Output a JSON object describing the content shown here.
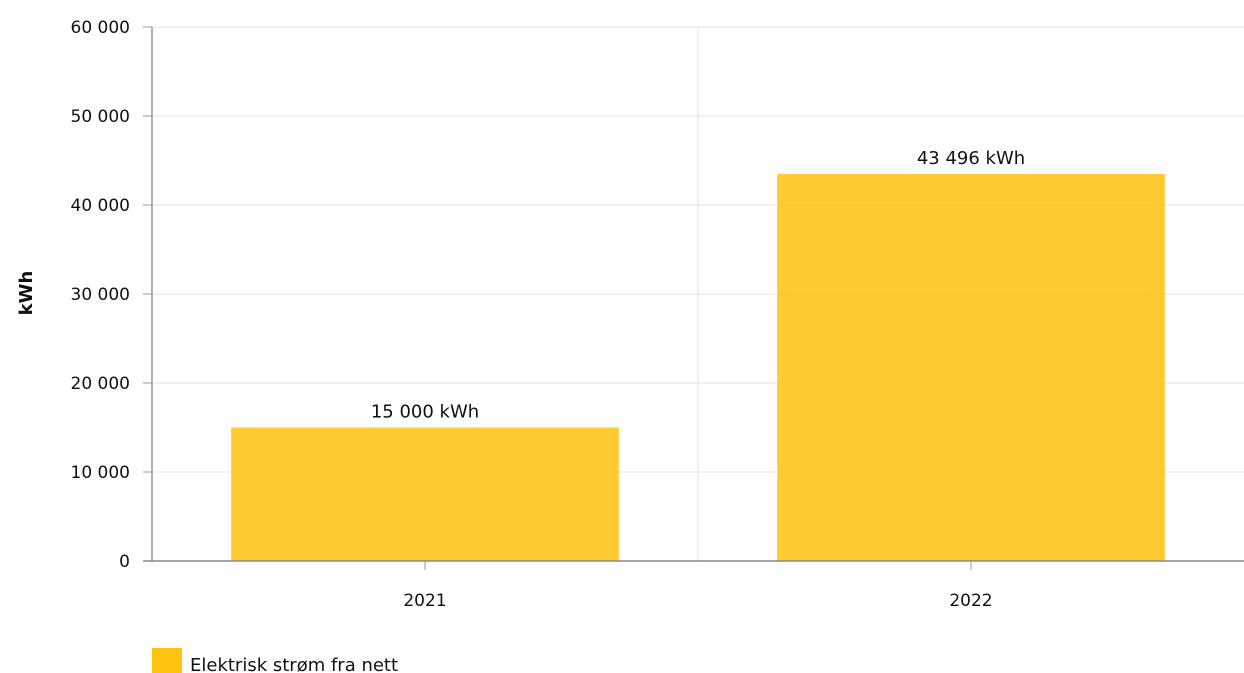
{
  "chart_data": {
    "type": "bar",
    "categories": [
      "2021",
      "2022"
    ],
    "series": [
      {
        "name": "Elektrisk strøm fra nett",
        "values": [
          15000,
          43496
        ],
        "color": "#ffc20e"
      }
    ],
    "data_labels": [
      "15 000 kWh",
      "43 496 kWh"
    ],
    "ylabel": "kWh",
    "xlabel": "",
    "ylim": [
      0,
      60000
    ],
    "yticks": [
      0,
      10000,
      20000,
      30000,
      40000,
      50000,
      60000
    ],
    "ytick_labels": [
      "0",
      "10 000",
      "20 000",
      "30 000",
      "40 000",
      "50 000",
      "60 000"
    ],
    "grid": true,
    "legend_position": "bottom-left"
  }
}
